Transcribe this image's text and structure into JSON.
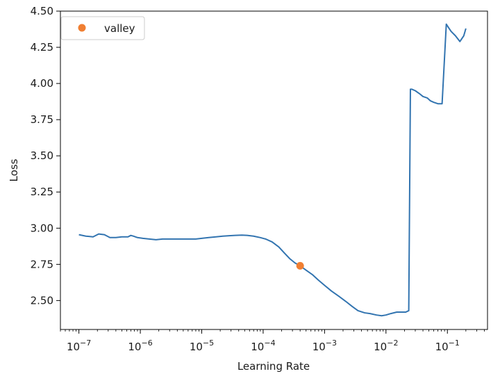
{
  "chart_data": {
    "type": "line",
    "title": "",
    "xlabel": "Learning Rate",
    "ylabel": "Loss",
    "xscale": "log",
    "xlim": [
      5e-08,
      0.45
    ],
    "ylim": [
      2.3,
      4.5
    ],
    "grid": false,
    "legend_position": "top-left",
    "x_tick_labels": [
      {
        "base": "10",
        "exp": "−7",
        "value": 1e-07
      },
      {
        "base": "10",
        "exp": "−6",
        "value": 1e-06
      },
      {
        "base": "10",
        "exp": "−5",
        "value": 1e-05
      },
      {
        "base": "10",
        "exp": "−4",
        "value": 0.0001
      },
      {
        "base": "10",
        "exp": "−3",
        "value": 0.001
      },
      {
        "base": "10",
        "exp": "−2",
        "value": 0.01
      },
      {
        "base": "10",
        "exp": "−1",
        "value": 0.1
      }
    ],
    "y_tick_labels": [
      {
        "text": "2.50",
        "value": 2.5
      },
      {
        "text": "2.75",
        "value": 2.75
      },
      {
        "text": "3.00",
        "value": 3.0
      },
      {
        "text": "3.25",
        "value": 3.25
      },
      {
        "text": "3.50",
        "value": 3.5
      },
      {
        "text": "3.75",
        "value": 3.75
      },
      {
        "text": "4.00",
        "value": 4.0
      },
      {
        "text": "4.25",
        "value": 4.25
      },
      {
        "text": "4.50",
        "value": 4.5
      }
    ],
    "series": [
      {
        "kind": "line",
        "color": "#3274b0",
        "x": [
          1e-07,
          1.3e-07,
          1.7e-07,
          2.1e-07,
          2.6e-07,
          3.2e-07,
          4e-07,
          5e-07,
          6.3e-07,
          7e-07,
          7.7e-07,
          9e-07,
          1.1e-06,
          1.4e-06,
          1.8e-06,
          2.3e-06,
          3e-06,
          4e-06,
          5e-06,
          6.5e-06,
          8e-06,
          1e-05,
          1.3e-05,
          1.7e-05,
          2.2e-05,
          2.8e-05,
          3.5e-05,
          4.5e-05,
          5.5e-05,
          7e-05,
          9e-05,
          0.00011,
          0.00014,
          0.00018,
          0.00022,
          0.00027,
          0.00033,
          0.0004,
          0.0005,
          0.00063,
          0.0008,
          0.001,
          0.0013,
          0.0017,
          0.0022,
          0.0028,
          0.0035,
          0.0045,
          0.0055,
          0.007,
          0.0085,
          0.01,
          0.012,
          0.015,
          0.018,
          0.021,
          0.0235,
          0.025,
          0.0265,
          0.03,
          0.035,
          0.04,
          0.047,
          0.053,
          0.06,
          0.07,
          0.078,
          0.082,
          0.096,
          0.103,
          0.115,
          0.135,
          0.16,
          0.185,
          0.2
        ],
        "y": [
          2.955,
          2.945,
          2.94,
          2.96,
          2.955,
          2.935,
          2.935,
          2.94,
          2.94,
          2.95,
          2.945,
          2.935,
          2.93,
          2.925,
          2.92,
          2.925,
          2.925,
          2.925,
          2.925,
          2.925,
          2.925,
          2.93,
          2.935,
          2.94,
          2.945,
          2.948,
          2.95,
          2.952,
          2.95,
          2.945,
          2.935,
          2.925,
          2.905,
          2.87,
          2.83,
          2.79,
          2.76,
          2.74,
          2.71,
          2.68,
          2.64,
          2.605,
          2.565,
          2.53,
          2.495,
          2.46,
          2.43,
          2.415,
          2.41,
          2.4,
          2.395,
          2.4,
          2.41,
          2.42,
          2.42,
          2.42,
          2.43,
          3.96,
          3.96,
          3.95,
          3.93,
          3.91,
          3.9,
          3.88,
          3.87,
          3.86,
          3.86,
          3.86,
          4.41,
          4.39,
          4.36,
          4.33,
          4.29,
          4.33,
          4.38
        ]
      },
      {
        "kind": "point",
        "name": "valley",
        "color": "#f07f32",
        "x": [
          0.0004
        ],
        "y": [
          2.74
        ]
      }
    ]
  }
}
